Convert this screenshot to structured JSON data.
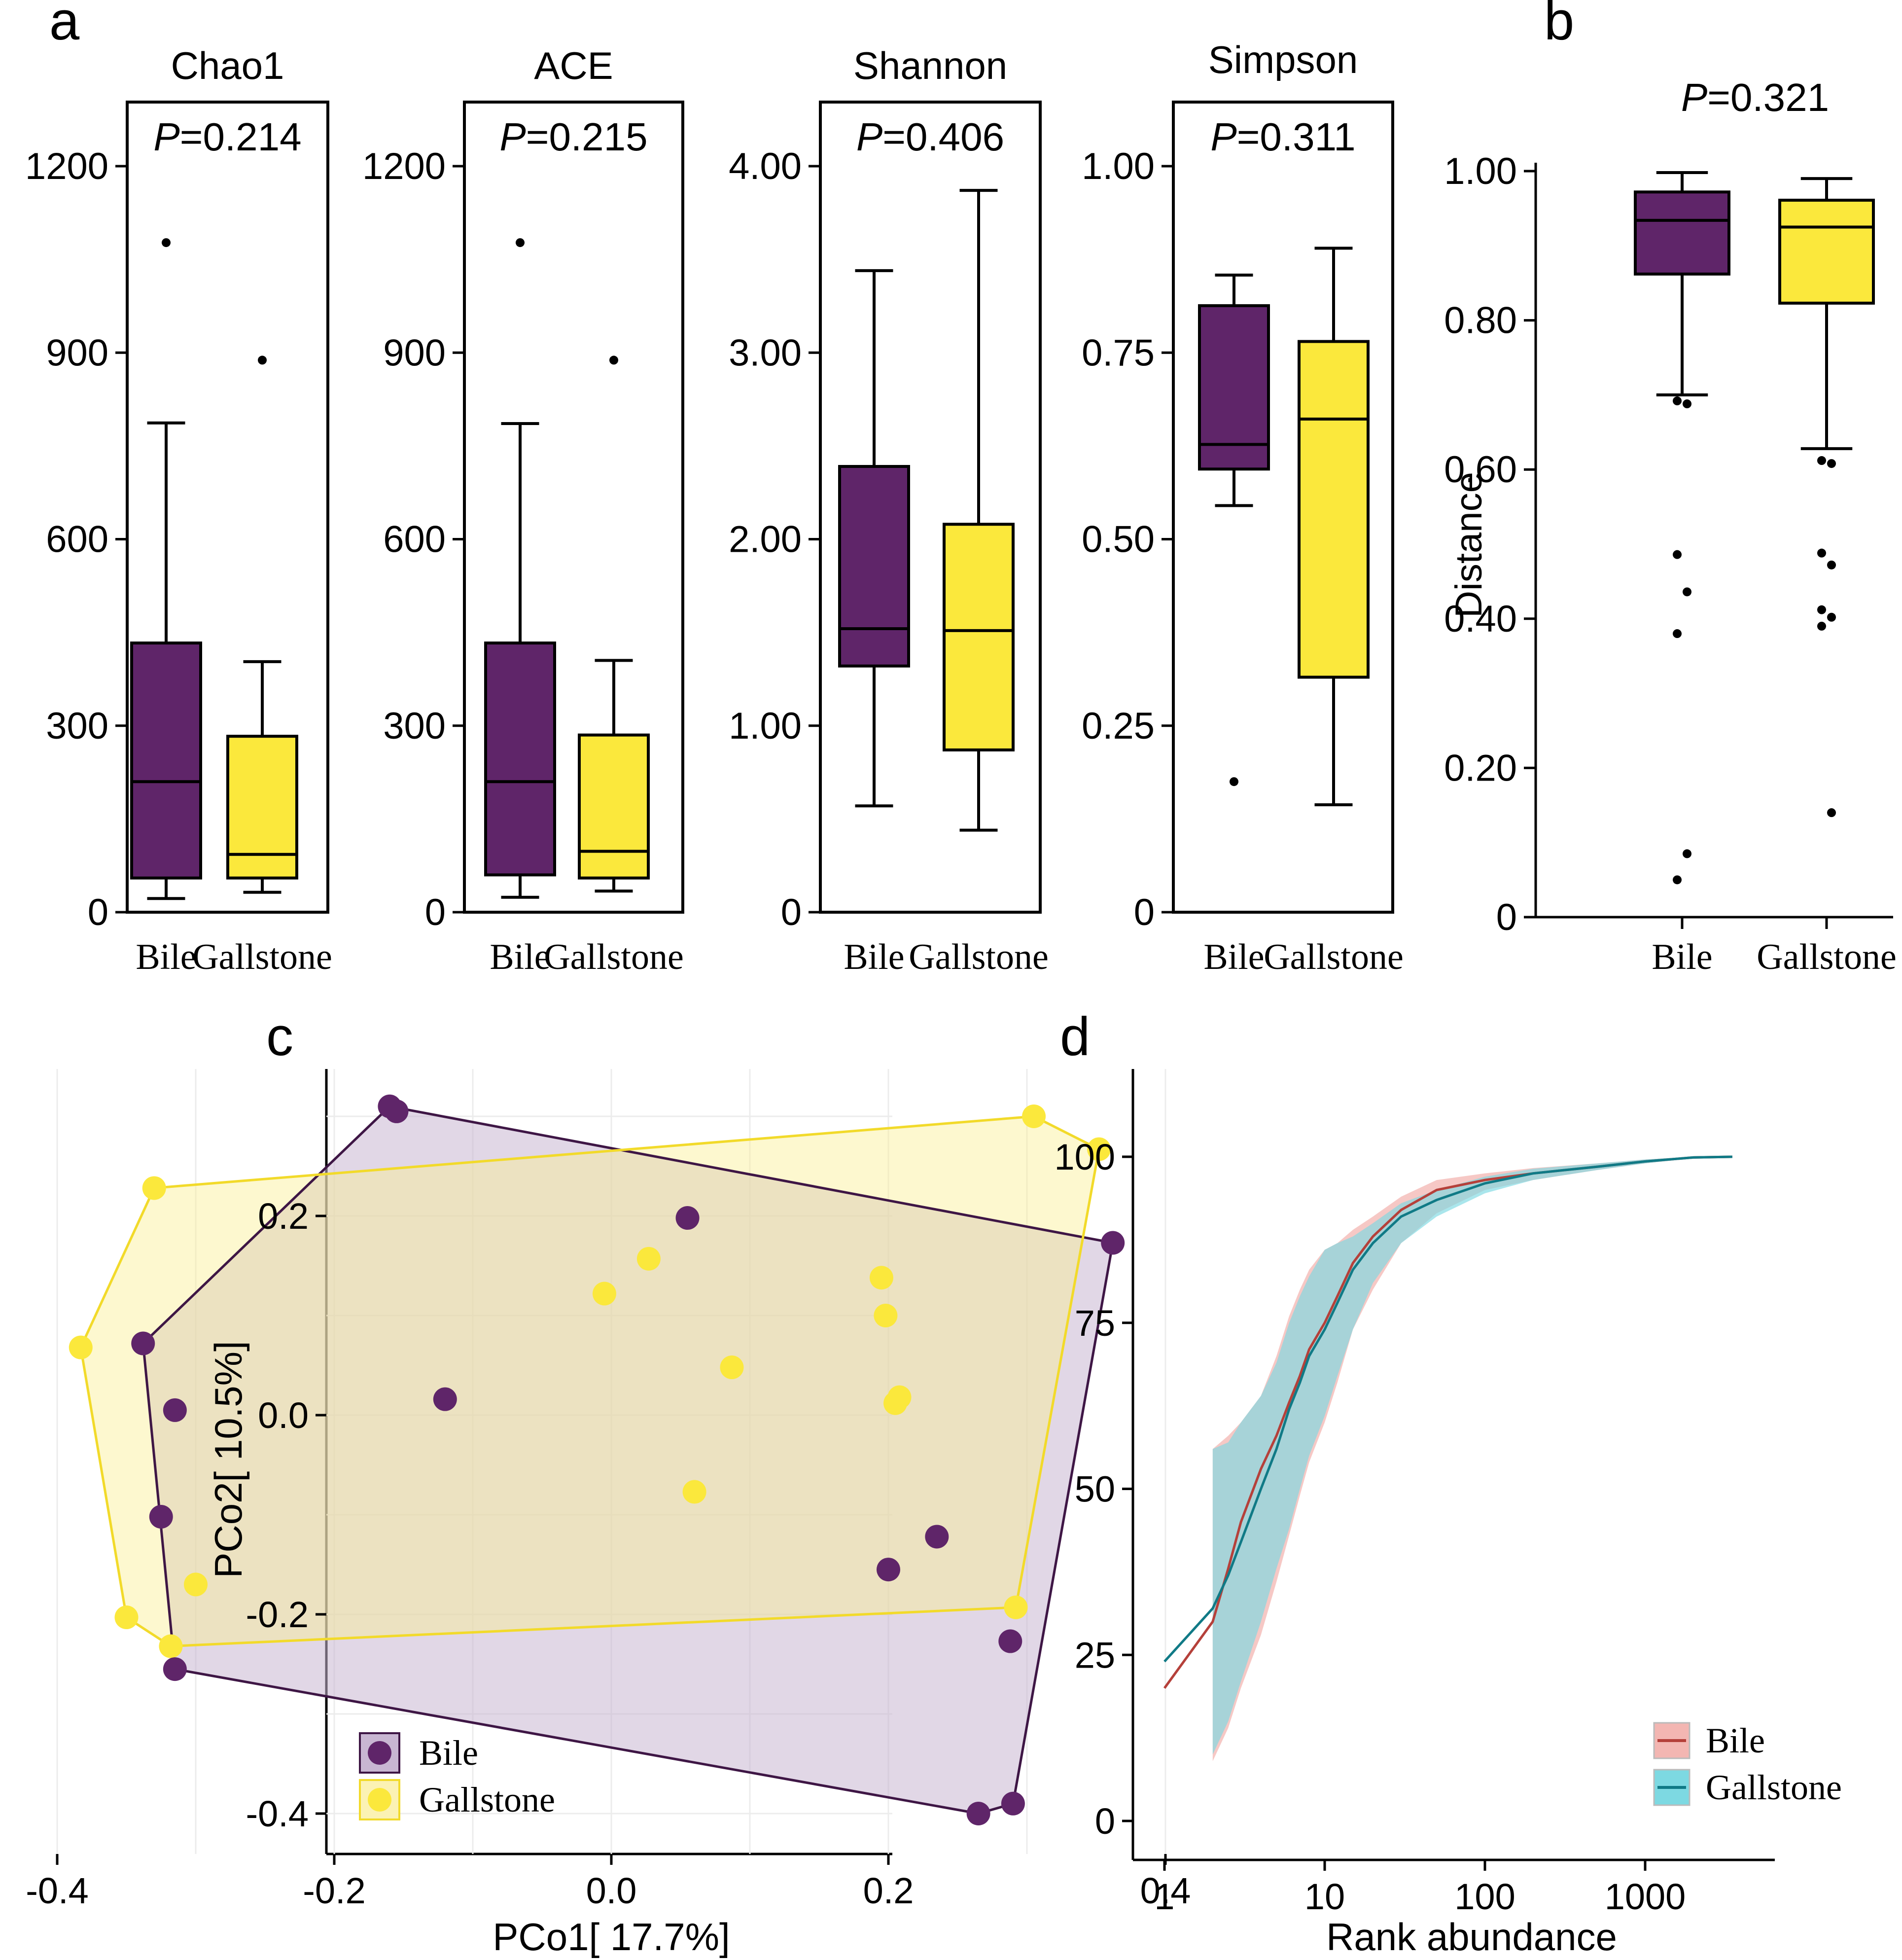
{
  "colors": {
    "bile": "#5f2569",
    "gallstone": "#fbe83c",
    "bile_hull": "#dcd3e4",
    "gallstone_hull": "#fcf6c4",
    "overlap": "#e6d9c4",
    "bile_line": "#b5403a",
    "gallstone_line": "#107a86",
    "bile_ribbon": "#f3b6b2",
    "gallstone_ribbon": "#7dd9e2",
    "overlap_ribbon": "#6f9c9a"
  },
  "panel_letters": {
    "a": "a",
    "b": "b",
    "c": "c",
    "d": "d"
  },
  "categories": [
    "Bile",
    "Gallstone"
  ],
  "p_prefix": "P",
  "chart_data": [
    {
      "id": "chao1",
      "type": "box",
      "title": "Chao1",
      "p_value": "=0.214",
      "ylim": [
        0,
        1200
      ],
      "ticks": [
        0,
        300,
        600,
        900,
        1200
      ],
      "tick_labels": [
        "0",
        "300",
        "600",
        "900",
        "1200"
      ],
      "categories": [
        "Bile",
        "Gallstone"
      ],
      "boxes": [
        {
          "name": "Bile",
          "min": 22,
          "q1": 55,
          "median": 210,
          "q3": 433,
          "max": 787,
          "outliers": [
            1077
          ]
        },
        {
          "name": "Gallstone",
          "min": 32,
          "q1": 55,
          "median": 93,
          "q3": 283,
          "max": 403,
          "outliers": [
            888
          ]
        }
      ]
    },
    {
      "id": "ace",
      "type": "box",
      "title": "ACE",
      "p_value": "=0.215",
      "ylim": [
        0,
        1200
      ],
      "ticks": [
        0,
        300,
        600,
        900,
        1200
      ],
      "tick_labels": [
        "0",
        "300",
        "600",
        "900",
        "1200"
      ],
      "categories": [
        "Bile",
        "Gallstone"
      ],
      "boxes": [
        {
          "name": "Bile",
          "min": 24,
          "q1": 60,
          "median": 210,
          "q3": 433,
          "max": 786,
          "outliers": [
            1077
          ]
        },
        {
          "name": "Gallstone",
          "min": 34,
          "q1": 55,
          "median": 98,
          "q3": 285,
          "max": 405,
          "outliers": [
            888
          ]
        }
      ]
    },
    {
      "id": "shannon",
      "type": "box",
      "title": "Shannon",
      "p_value": "=0.406",
      "ylim": [
        0,
        4
      ],
      "ticks": [
        0,
        1,
        2,
        3,
        4
      ],
      "tick_labels": [
        "0",
        "1.00",
        "2.00",
        "3.00",
        "4.00"
      ],
      "categories": [
        "Bile",
        "Gallstone"
      ],
      "boxes": [
        {
          "name": "Bile",
          "min": 0.57,
          "q1": 1.32,
          "median": 1.52,
          "q3": 2.39,
          "max": 3.44,
          "outliers": []
        },
        {
          "name": "Gallstone",
          "min": 0.44,
          "q1": 0.87,
          "median": 1.51,
          "q3": 2.08,
          "max": 3.87,
          "outliers": []
        }
      ]
    },
    {
      "id": "simpson",
      "type": "box",
      "title": "Simpson",
      "p_value": "=0.311",
      "ylim": [
        0,
        1
      ],
      "ticks": [
        0,
        0.25,
        0.5,
        0.75,
        1
      ],
      "tick_labels": [
        "0",
        "0.25",
        "0.50",
        "0.75",
        "1.00"
      ],
      "categories": [
        "Bile",
        "Gallstone"
      ],
      "boxes": [
        {
          "name": "Bile",
          "min": 0.545,
          "q1": 0.594,
          "median": 0.627,
          "q3": 0.813,
          "max": 0.854,
          "outliers": [
            0.175
          ]
        },
        {
          "name": "Gallstone",
          "min": 0.144,
          "q1": 0.315,
          "median": 0.661,
          "q3": 0.765,
          "max": 0.89,
          "outliers": []
        }
      ]
    },
    {
      "id": "distance",
      "type": "box",
      "title": "",
      "p_value": "=0.321",
      "ylabel": "Distance",
      "ylim": [
        0,
        1
      ],
      "ticks": [
        0,
        0.2,
        0.4,
        0.6,
        0.8,
        1
      ],
      "tick_labels": [
        "0",
        "0.20",
        "0.40",
        "0.60",
        "0.80",
        "1.00"
      ],
      "categories": [
        "Bile",
        "Gallstone"
      ],
      "boxes": [
        {
          "name": "Bile",
          "min": 0.7,
          "q1": 0.862,
          "median": 0.934,
          "q3": 0.972,
          "max": 0.998,
          "outliers": [
            0.692,
            0.688,
            0.486,
            0.436,
            0.38,
            0.085,
            0.05
          ]
        },
        {
          "name": "Gallstone",
          "min": 0.628,
          "q1": 0.823,
          "median": 0.925,
          "q3": 0.961,
          "max": 0.99,
          "outliers": [
            0.612,
            0.608,
            0.488,
            0.472,
            0.412,
            0.402,
            0.39,
            0.14
          ]
        }
      ]
    },
    {
      "id": "pcoa",
      "type": "scatter",
      "xlabel": "PCo1[ 17.7%]",
      "ylabel": "PCo2[ 10.5%]",
      "xlim": [
        -0.42,
        0.42
      ],
      "ylim": [
        -0.44,
        0.34
      ],
      "xticks": [
        -0.4,
        -0.2,
        0.0,
        0.2,
        0.4
      ],
      "xtick_labels": [
        "-0.4",
        "-0.2",
        "0.0",
        "0.2",
        "0.4"
      ],
      "yticks": [
        -0.4,
        -0.2,
        0.0,
        0.2
      ],
      "ytick_labels": [
        "-0.4",
        "-0.2",
        "0.0",
        "0.2"
      ],
      "legend": [
        "Bile",
        "Gallstone"
      ],
      "series": [
        {
          "name": "Bile",
          "points": [
            [
              -0.16,
              0.31
            ],
            [
              -0.155,
              0.305
            ],
            [
              0.055,
              0.198
            ],
            [
              0.362,
              0.173
            ],
            [
              -0.338,
              0.072
            ],
            [
              -0.315,
              0.005
            ],
            [
              -0.12,
              0.016
            ],
            [
              -0.325,
              -0.102
            ],
            [
              0.235,
              -0.122
            ],
            [
              0.2,
              -0.155
            ],
            [
              0.288,
              -0.227
            ],
            [
              -0.315,
              -0.255
            ],
            [
              0.29,
              -0.39
            ],
            [
              0.265,
              -0.4
            ]
          ],
          "hull": [
            [
              -0.16,
              0.31
            ],
            [
              0.362,
              0.173
            ],
            [
              0.29,
              -0.39
            ],
            [
              0.265,
              -0.4
            ],
            [
              -0.315,
              -0.255
            ],
            [
              -0.338,
              0.072
            ]
          ]
        },
        {
          "name": "Gallstone",
          "points": [
            [
              0.305,
              0.3
            ],
            [
              0.352,
              0.267
            ],
            [
              -0.33,
              0.228
            ],
            [
              0.027,
              0.157
            ],
            [
              0.195,
              0.138
            ],
            [
              -0.005,
              0.122
            ],
            [
              0.198,
              0.1
            ],
            [
              -0.383,
              0.068
            ],
            [
              0.087,
              0.048
            ],
            [
              0.208,
              0.018
            ],
            [
              0.205,
              0.012
            ],
            [
              0.06,
              -0.077
            ],
            [
              -0.3,
              -0.17
            ],
            [
              0.292,
              -0.193
            ],
            [
              -0.35,
              -0.203
            ],
            [
              -0.318,
              -0.232
            ]
          ],
          "hull": [
            [
              -0.33,
              0.228
            ],
            [
              0.305,
              0.3
            ],
            [
              0.352,
              0.267
            ],
            [
              0.292,
              -0.193
            ],
            [
              -0.318,
              -0.232
            ],
            [
              -0.35,
              -0.203
            ],
            [
              -0.383,
              0.068
            ]
          ]
        }
      ]
    },
    {
      "id": "rank",
      "type": "line",
      "xlabel": "Rank abundance",
      "xscale": "log",
      "xlim": [
        0.62,
        5500
      ],
      "ylim": [
        -6,
        112
      ],
      "xticks": [
        1,
        10,
        100,
        1000
      ],
      "xtick_labels": [
        "1",
        "10",
        "100",
        "1000"
      ],
      "yticks": [
        0,
        25,
        50,
        75,
        100
      ],
      "ytick_labels": [
        "0",
        "25",
        "50",
        "75",
        "100"
      ],
      "legend": [
        "Bile",
        "Gallstone"
      ],
      "series": [
        {
          "name": "Bile",
          "x": [
            1,
            2,
            2.5,
            3,
            4,
            5,
            6,
            7,
            8,
            10,
            12,
            15,
            20,
            30,
            50,
            100,
            200,
            500,
            1000,
            2000,
            3500
          ],
          "y": [
            20,
            30,
            38,
            45,
            53,
            58,
            63,
            67,
            71,
            75,
            79,
            84,
            88,
            92,
            95,
            96.5,
            97.5,
            98.5,
            99.3,
            99.9,
            100
          ],
          "lower": [
            null,
            9,
            14,
            20,
            28,
            36,
            43,
            49,
            54,
            60,
            66,
            74,
            80,
            87,
            91.5,
            95,
            96.5,
            98,
            99,
            99.8,
            100
          ],
          "upper": [
            null,
            56,
            58,
            60,
            64,
            70,
            76,
            80,
            83,
            86,
            87,
            89,
            91,
            94,
            96.5,
            97.5,
            98.3,
            99,
            99.6,
            100,
            100
          ]
        },
        {
          "name": "Gallstone",
          "x": [
            1,
            2,
            2.5,
            3,
            4,
            5,
            6,
            7,
            8,
            10,
            12,
            15,
            20,
            30,
            50,
            100,
            200,
            500,
            1000,
            2000,
            3500
          ],
          "y": [
            24,
            32,
            37,
            42,
            50,
            56,
            62,
            66,
            70,
            74,
            78,
            83,
            87,
            91,
            93.5,
            96,
            97.5,
            98.5,
            99.3,
            99.9,
            100
          ],
          "lower": [
            null,
            10,
            15,
            21,
            30,
            38,
            44,
            50,
            55,
            61,
            67,
            74,
            81,
            87,
            91,
            94.5,
            96.5,
            98,
            99,
            99.8,
            100
          ],
          "upper": [
            null,
            56,
            57,
            60,
            64,
            69,
            75,
            79,
            82,
            86,
            87,
            88,
            90,
            93,
            95,
            97,
            98.2,
            99,
            99.6,
            100,
            100
          ]
        }
      ]
    }
  ]
}
